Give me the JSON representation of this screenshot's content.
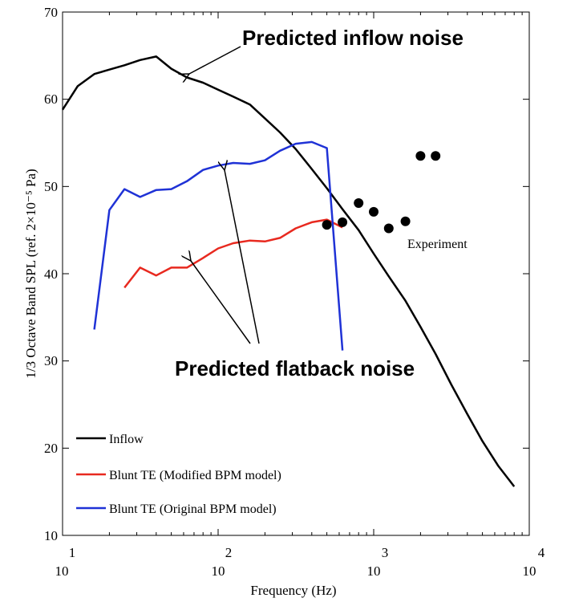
{
  "chart_data": {
    "type": "line",
    "xlabel": "Frequency (Hz)",
    "ylabel": "1/3 Octave Band SPL (ref. 2×10⁻⁵ Pa)",
    "x_scale": "log",
    "xlim": [
      10,
      10000
    ],
    "ylim": [
      10,
      70
    ],
    "x_ticks": [
      {
        "base": "10",
        "exp": "1"
      },
      {
        "base": "10",
        "exp": "2"
      },
      {
        "base": "10",
        "exp": "3"
      },
      {
        "base": "10",
        "exp": "4"
      }
    ],
    "y_ticks": [
      "10",
      "20",
      "30",
      "40",
      "50",
      "60",
      "70"
    ],
    "y_tick_values": [
      10,
      20,
      30,
      40,
      50,
      60,
      70
    ],
    "grid": false,
    "legend_position": "bottom-left",
    "series": [
      {
        "name": "Inflow",
        "color": "#000000",
        "x": [
          10,
          12.5,
          16,
          20,
          25,
          31.5,
          40,
          50,
          63,
          80,
          100,
          125,
          160,
          200,
          250,
          315,
          400,
          500,
          630,
          800,
          1000,
          1250,
          1600,
          2000,
          2500,
          3150,
          4000,
          5000,
          6300,
          8000
        ],
        "y": [
          58.8,
          61.5,
          62.9,
          63.4,
          63.9,
          64.5,
          64.9,
          63.5,
          62.5,
          61.9,
          61.1,
          60.3,
          59.4,
          57.8,
          56.2,
          54.3,
          52.0,
          49.8,
          47.4,
          45.0,
          42.3,
          39.7,
          36.9,
          33.9,
          30.8,
          27.3,
          23.9,
          20.8,
          18.0,
          15.6
        ]
      },
      {
        "name": "Blunt TE (Modified BPM model)",
        "color": "#e8291f",
        "x": [
          25,
          31.5,
          40,
          50,
          63,
          80,
          100,
          125,
          160,
          200,
          250,
          315,
          400,
          500,
          630
        ],
        "y": [
          38.4,
          40.7,
          39.8,
          40.7,
          40.7,
          41.8,
          42.9,
          43.5,
          43.8,
          43.7,
          44.1,
          45.2,
          45.9,
          46.2,
          45.3
        ]
      },
      {
        "name": "Blunt TE (Original BPM model)",
        "color": "#1f32d6",
        "x": [
          16,
          20,
          25,
          31.5,
          40,
          50,
          63,
          80,
          100,
          125,
          160,
          200,
          250,
          315,
          400,
          500,
          630
        ],
        "y": [
          33.6,
          47.3,
          49.7,
          48.8,
          49.6,
          49.7,
          50.6,
          51.9,
          52.4,
          52.7,
          52.6,
          53.0,
          54.1,
          54.9,
          55.1,
          54.4,
          31.2
        ]
      },
      {
        "name": "Experiment",
        "type": "scatter",
        "color": "#000000",
        "x": [
          500,
          630,
          800,
          1000,
          1250,
          1600,
          2000,
          2500
        ],
        "y": [
          45.6,
          45.9,
          48.1,
          47.1,
          45.2,
          46.0,
          53.5,
          53.5
        ]
      }
    ],
    "annotations": [
      {
        "text": "Predicted inflow noise"
      },
      {
        "text": "Predicted flatback noise"
      },
      {
        "text": "Experiment"
      }
    ]
  }
}
